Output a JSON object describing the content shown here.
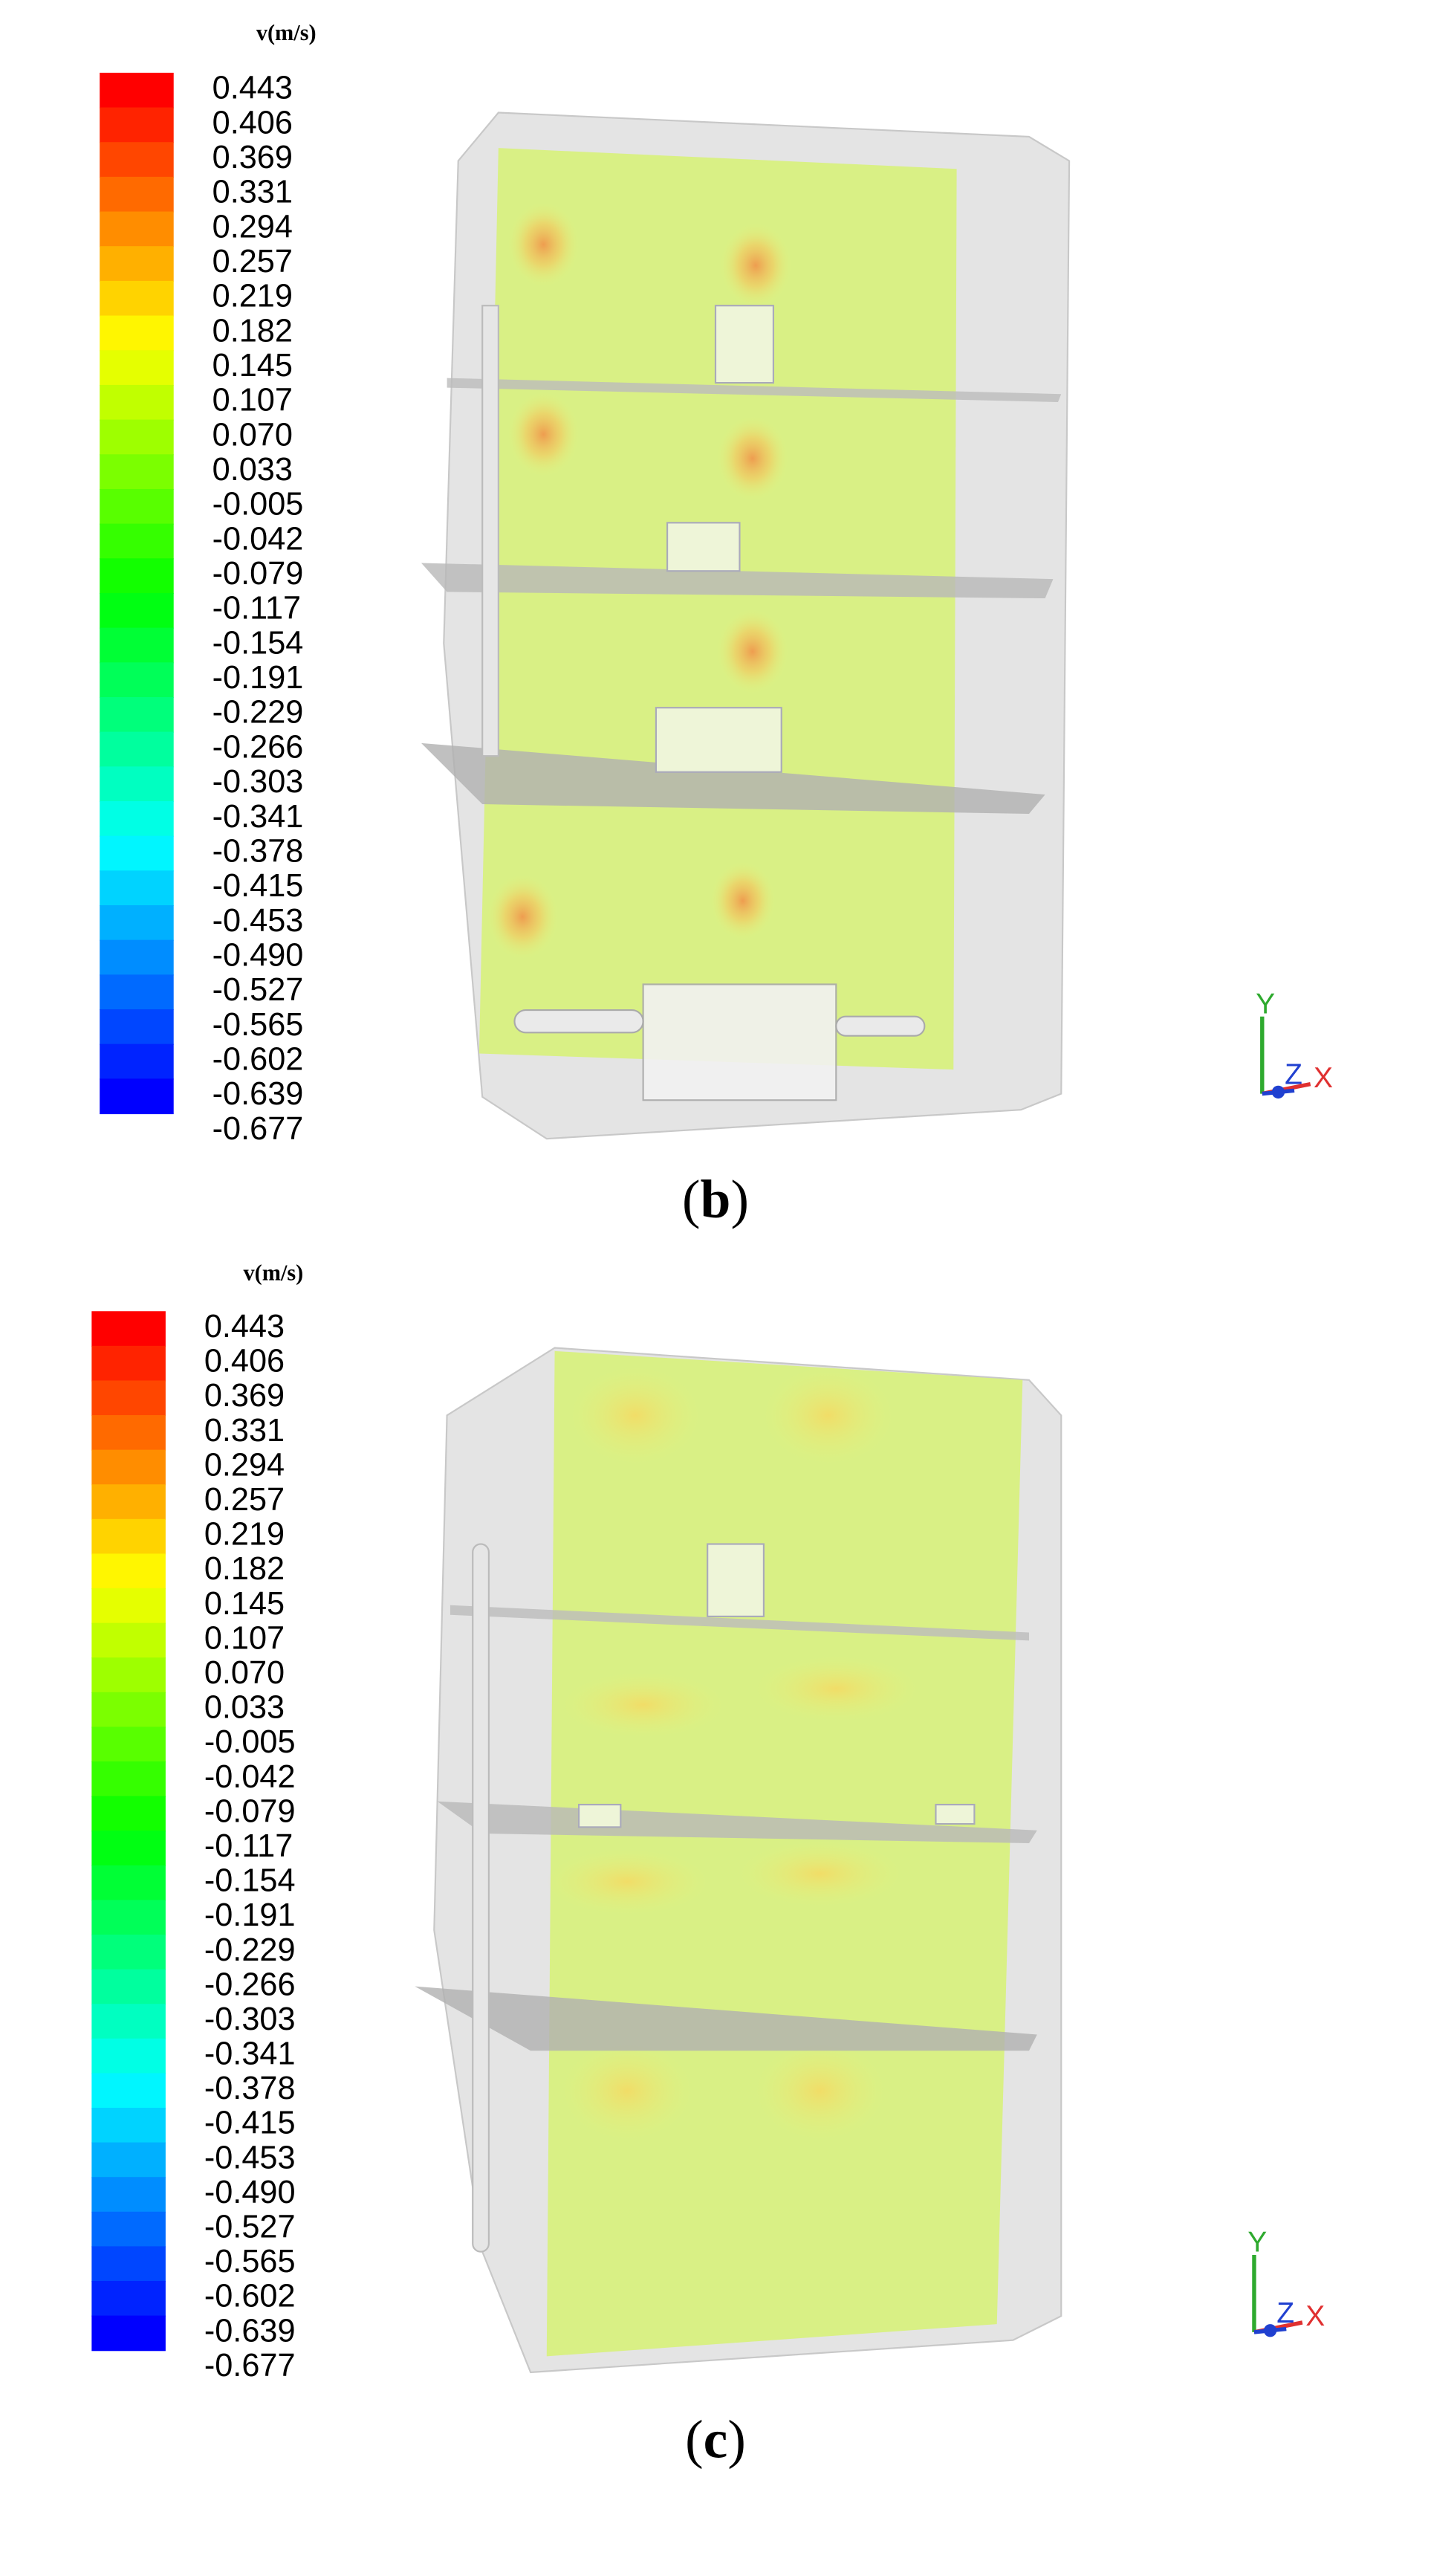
{
  "panels": [
    {
      "unit": "v(m/s)",
      "label": "b",
      "levels": [
        "0.443",
        "0.406",
        "0.369",
        "0.331",
        "0.294",
        "0.257",
        "0.219",
        "0.182",
        "0.145",
        "0.107",
        "0.070",
        "0.033",
        "-0.005",
        "-0.042",
        "-0.079",
        "-0.117",
        "-0.154",
        "-0.191",
        "-0.229",
        "-0.266",
        "-0.303",
        "-0.341",
        "-0.378",
        "-0.415",
        "-0.453",
        "-0.490",
        "-0.527",
        "-0.565",
        "-0.602",
        "-0.639",
        "-0.677"
      ],
      "axes": {
        "y": "Y",
        "z": "Z",
        "x": "X"
      }
    },
    {
      "unit": "v(m/s)",
      "label": "c",
      "levels": [
        "0.443",
        "0.406",
        "0.369",
        "0.331",
        "0.294",
        "0.257",
        "0.219",
        "0.182",
        "0.145",
        "0.107",
        "0.070",
        "0.033",
        "-0.005",
        "-0.042",
        "-0.079",
        "-0.117",
        "-0.154",
        "-0.191",
        "-0.229",
        "-0.266",
        "-0.303",
        "-0.341",
        "-0.378",
        "-0.415",
        "-0.453",
        "-0.490",
        "-0.527",
        "-0.565",
        "-0.602",
        "-0.639",
        "-0.677"
      ],
      "axes": {
        "y": "Y",
        "z": "Z",
        "x": "X"
      }
    }
  ]
}
